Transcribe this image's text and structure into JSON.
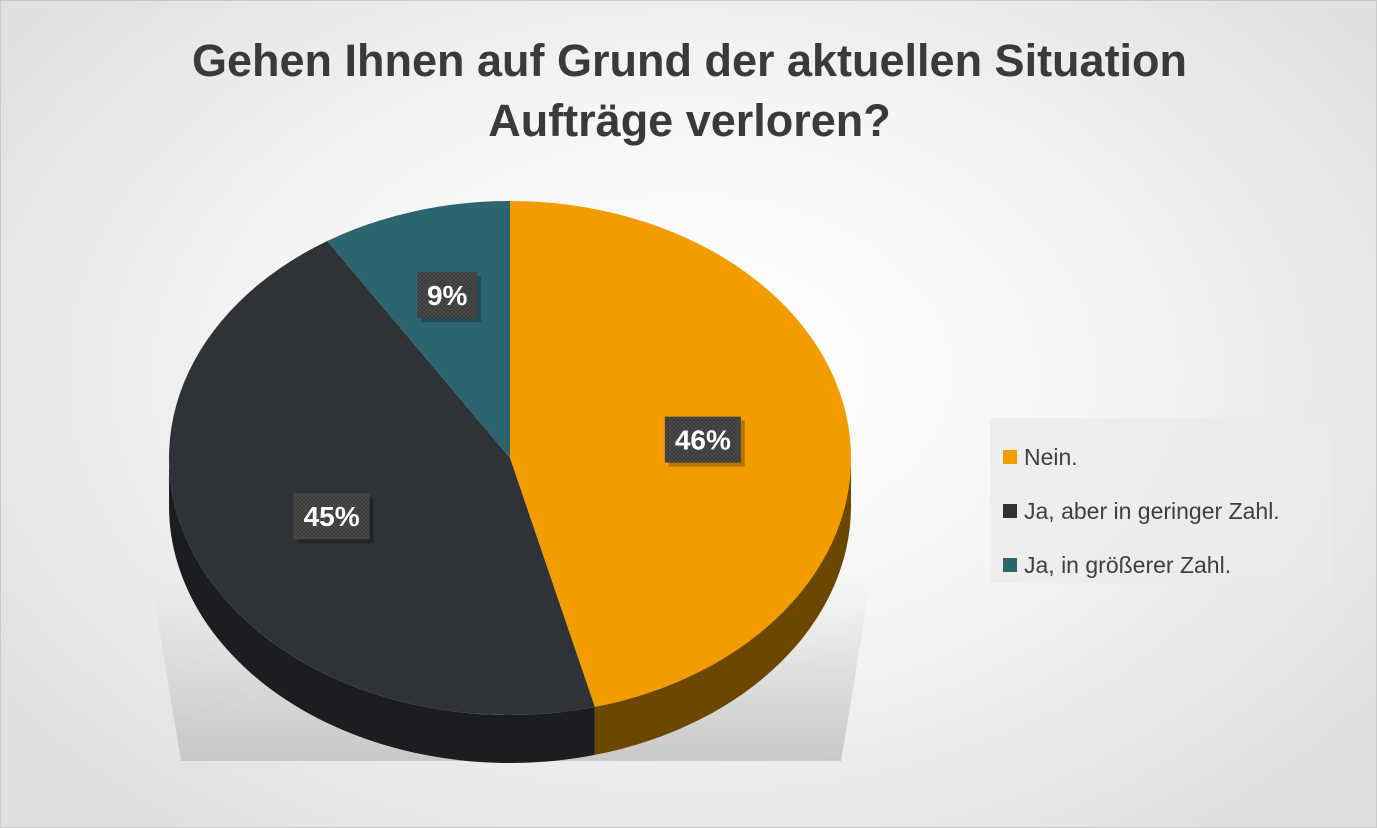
{
  "chart_data": {
    "type": "pie",
    "title": "Gehen Ihnen auf Grund der aktuellen Situation Aufträge verloren?",
    "title_lines": [
      "Gehen Ihnen auf Grund der aktuellen Situation",
      "Aufträge verloren?"
    ],
    "style": "3d",
    "legend_position": "right",
    "slices": [
      {
        "label": "Nein.",
        "value": 46,
        "display": "46%",
        "color": "#f39c00",
        "side_color": "#6b4700"
      },
      {
        "label": "Ja, aber in geringer Zahl.",
        "value": 45,
        "display": "45%",
        "color": "#2f3337",
        "side_color": "#1b1d20"
      },
      {
        "label": "Ja, in größerer Zahl.",
        "value": 9,
        "display": "9%",
        "color": "#2b6670",
        "side_color": "#173a40"
      }
    ]
  }
}
